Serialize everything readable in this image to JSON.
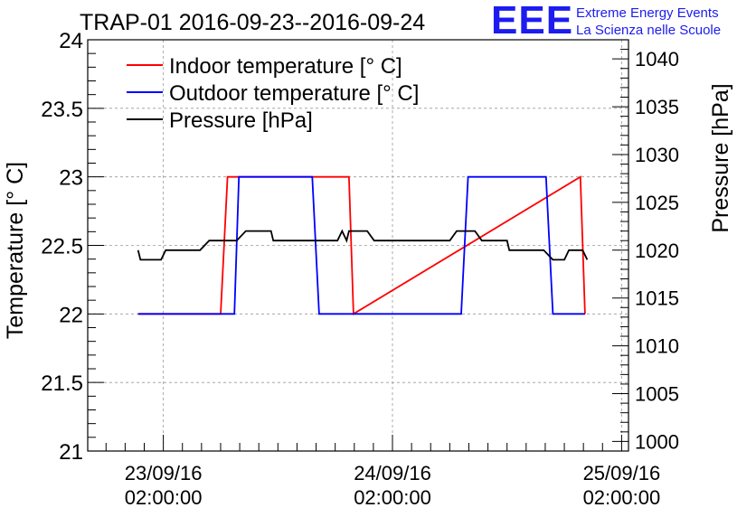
{
  "header": {
    "logo_text": "EEE",
    "subtitle_line1": "Extreme Energy Events",
    "subtitle_line2": "La Scienza nelle Scuole"
  },
  "chart_data": {
    "type": "line",
    "title": "TRAP-01 2016-09-23--2016-09-24",
    "ylabel": "Temperature [° C]",
    "y2label": "Pressure [hPa]",
    "xlabel": "",
    "ylim": [
      21,
      24
    ],
    "y2lim": [
      999,
      1042
    ],
    "xlim": [
      -0.33,
      2.03
    ],
    "grid": true,
    "legend_position": "top-left",
    "x_ticks": [
      {
        "value": 0,
        "line1": "23/09/16",
        "line2": "02:00:00"
      },
      {
        "value": 1,
        "line1": "24/09/16",
        "line2": "02:00:00"
      },
      {
        "value": 2,
        "line1": "25/09/16",
        "line2": "02:00:00"
      }
    ],
    "y_ticks": [
      21,
      21.5,
      22,
      22.5,
      23,
      23.5,
      24
    ],
    "y2_ticks": [
      1000,
      1005,
      1010,
      1015,
      1020,
      1025,
      1030,
      1035,
      1040
    ],
    "x_unit": "days since 23/09/16 02:00:00",
    "series": [
      {
        "name": "Indoor temperature [° C]",
        "color": "#ff0000",
        "axis": "left",
        "x": [
          -0.11,
          0.25,
          0.28,
          0.81,
          0.83,
          1.82,
          1.84
        ],
        "y": [
          22,
          22,
          23,
          23,
          22,
          23,
          22
        ]
      },
      {
        "name": "Outdoor temperature [° C]",
        "color": "#0000ff",
        "axis": "left",
        "x": [
          -0.11,
          0.31,
          0.33,
          0.65,
          0.68,
          1.3,
          1.33,
          1.67,
          1.7,
          1.84
        ],
        "y": [
          22,
          22,
          23,
          23,
          22,
          22,
          23,
          23,
          22,
          22
        ]
      },
      {
        "name": "Pressure [hPa]",
        "color": "#000000",
        "axis": "right",
        "x": [
          -0.11,
          -0.1,
          -0.01,
          0.01,
          0.16,
          0.2,
          0.32,
          0.36,
          0.47,
          0.48,
          0.76,
          0.78,
          0.8,
          0.81,
          0.89,
          0.92,
          1.25,
          1.28,
          1.36,
          1.39,
          1.5,
          1.51,
          1.58,
          1.6,
          1.66,
          1.7,
          1.75,
          1.77,
          1.83,
          1.85
        ],
        "y": [
          1020,
          1019,
          1019,
          1020,
          1020,
          1021,
          1021,
          1022,
          1022,
          1021,
          1021,
          1022,
          1021,
          1022,
          1022,
          1021,
          1021,
          1022,
          1022,
          1021,
          1021,
          1020,
          1020,
          1020,
          1020,
          1019,
          1019,
          1020,
          1020,
          1019
        ]
      }
    ]
  }
}
